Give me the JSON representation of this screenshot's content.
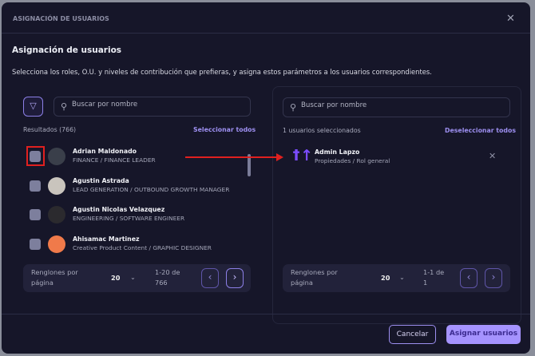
{
  "dialog": {
    "header": "ASIGNACIÓN DE USUARIOS",
    "title": "Asignación de usuarios",
    "description": "Selecciona los roles, O.U. y niveles de contribución que prefieras, y asigna estos parámetros a los usuarios correspondientes."
  },
  "left": {
    "search_placeholder": "Buscar por nombre",
    "results_label": "Resultados (766)",
    "select_all": "Seleccionar todos",
    "users": [
      {
        "name": "Adrian Maldonado",
        "role": "FINANCE / FINANCE LEADER",
        "avatar_color": "#3a3f4a"
      },
      {
        "name": "Agustin Astrada",
        "role": "LEAD GENERATION / OUTBOUND GROWTH MANAGER",
        "avatar_color": "#c9c4bd"
      },
      {
        "name": "Agustin Nicolas Velazquez",
        "role": "ENGINEERING / SOFTWARE ENGINEER",
        "avatar_color": "#2b2a2e"
      },
      {
        "name": "Ahisamac Martinez",
        "role": "Creative Product Content / GRAPHIC DESIGNER",
        "avatar_color": "#f07a4a"
      }
    ],
    "pagination": {
      "rows_label": "Renglones por página",
      "rows_value": "20",
      "range": "1-20 de 766"
    }
  },
  "right": {
    "search_placeholder": "Buscar por nombre",
    "selected_label": "1 usuarios seleccionados",
    "deselect_all": "Deseleccionar todos",
    "users": [
      {
        "name": "Admin Lapzo",
        "role": "Propiedades / Rol general"
      }
    ],
    "pagination": {
      "rows_label": "Renglones por página",
      "rows_value": "20",
      "range": "1-1 de 1"
    }
  },
  "footer": {
    "cancel": "Cancelar",
    "assign": "Asignar usuarios"
  },
  "colors": {
    "accent": "#a593ff",
    "annotation": "#e0201f"
  }
}
